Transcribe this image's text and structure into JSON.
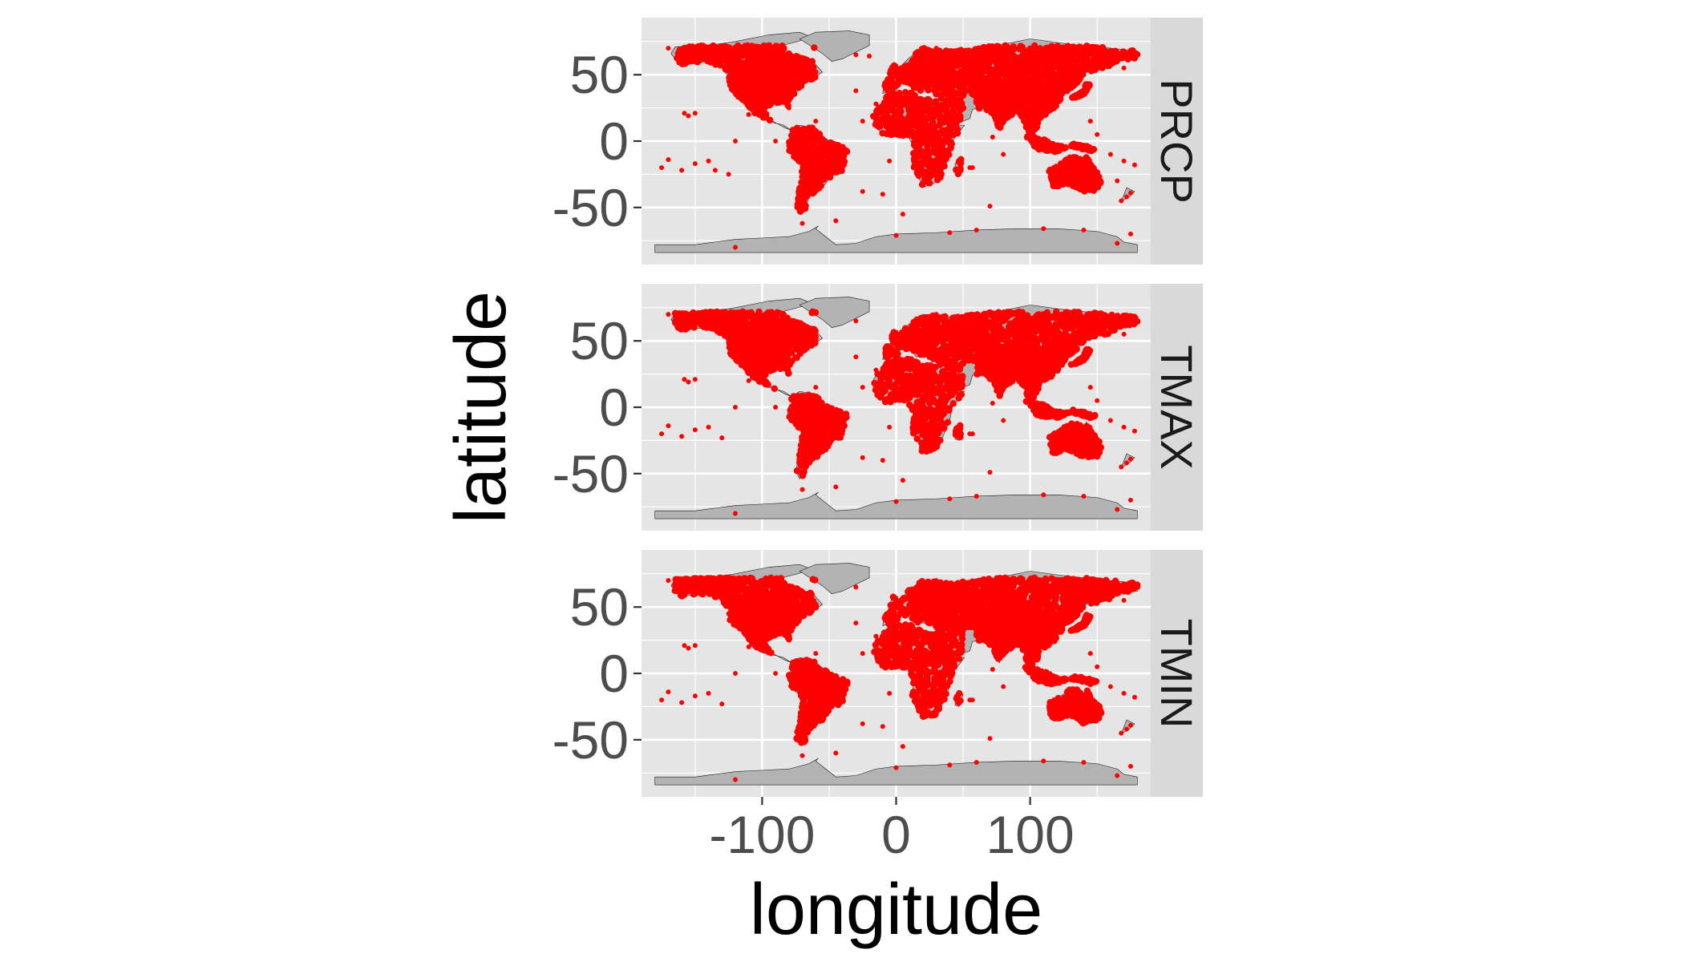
{
  "chart_data": {
    "type": "scatter",
    "xlabel": "longitude",
    "ylabel": "latitude",
    "xlim": [
      -190,
      190
    ],
    "ylim": [
      -93,
      93
    ],
    "xticks": [
      -100,
      0,
      100
    ],
    "xtick_labels": [
      "-100",
      "0",
      "100"
    ],
    "yticks": [
      -50,
      0,
      50
    ],
    "ytick_labels": [
      "-50",
      "0",
      "50"
    ],
    "grid": true,
    "panels": [
      {
        "label": "PRCP",
        "points": [
          [
            -170,
            70
          ],
          [
            -160,
            66
          ],
          [
            -150,
            62
          ],
          [
            -150,
            21
          ],
          [
            -158,
            21
          ],
          [
            -155,
            19
          ],
          [
            -170,
            -14
          ],
          [
            -175,
            -20
          ],
          [
            -160,
            -22
          ],
          [
            -150,
            -17
          ],
          [
            -140,
            -15
          ],
          [
            -135,
            -22
          ],
          [
            -125,
            -25
          ],
          [
            -120,
            0
          ],
          [
            -120,
            -80
          ],
          [
            -70,
            -62
          ],
          [
            -45,
            -60
          ],
          [
            0,
            -71
          ],
          [
            40,
            -69
          ],
          [
            60,
            -67
          ],
          [
            110,
            -66
          ],
          [
            140,
            -67
          ],
          [
            165,
            -77
          ],
          [
            175,
            -70
          ],
          [
            -30,
            38
          ],
          [
            -25,
            15
          ],
          [
            -15,
            28
          ],
          [
            -25,
            -38
          ],
          [
            -10,
            -40
          ],
          [
            -5,
            -15
          ],
          [
            5,
            -55
          ],
          [
            55,
            -20
          ],
          [
            57,
            -20
          ],
          [
            70,
            -49
          ],
          [
            80,
            -10
          ],
          [
            72,
            3
          ],
          [
            160,
            -10
          ],
          [
            170,
            -15
          ],
          [
            178,
            -18
          ],
          [
            172,
            -42
          ],
          [
            175,
            -39
          ],
          [
            168,
            -45
          ],
          [
            150,
            5
          ],
          [
            145,
            15
          ],
          [
            165,
            -30
          ],
          [
            -80,
            25
          ],
          [
            -90,
            0
          ],
          [
            -110,
            20
          ],
          [
            -125,
            45
          ],
          [
            -85,
            35
          ],
          [
            -120,
            60
          ],
          [
            170,
            55
          ],
          [
            -60,
            15
          ],
          [
            -40,
            -20
          ],
          [
            -30,
            65
          ],
          [
            -20,
            64
          ],
          [
            30,
            70
          ],
          [
            80,
            70
          ],
          [
            140,
            50
          ]
        ]
      },
      {
        "label": "TMAX",
        "points": [
          [
            -170,
            70
          ],
          [
            -160,
            66
          ],
          [
            -150,
            62
          ],
          [
            -150,
            21
          ],
          [
            -158,
            21
          ],
          [
            -155,
            19
          ],
          [
            -170,
            -14
          ],
          [
            -175,
            -20
          ],
          [
            -160,
            -22
          ],
          [
            -150,
            -17
          ],
          [
            -140,
            -15
          ],
          [
            -130,
            -23
          ],
          [
            -120,
            0
          ],
          [
            -120,
            -80
          ],
          [
            -70,
            -62
          ],
          [
            -45,
            -60
          ],
          [
            0,
            -71
          ],
          [
            40,
            -69
          ],
          [
            60,
            -67
          ],
          [
            110,
            -66
          ],
          [
            140,
            -67
          ],
          [
            165,
            -77
          ],
          [
            175,
            -70
          ],
          [
            -30,
            38
          ],
          [
            -25,
            15
          ],
          [
            -15,
            28
          ],
          [
            -25,
            -38
          ],
          [
            -10,
            -40
          ],
          [
            -5,
            -15
          ],
          [
            5,
            -55
          ],
          [
            55,
            -20
          ],
          [
            57,
            -20
          ],
          [
            70,
            -49
          ],
          [
            80,
            -10
          ],
          [
            72,
            3
          ],
          [
            160,
            -10
          ],
          [
            170,
            -15
          ],
          [
            178,
            -18
          ],
          [
            172,
            -42
          ],
          [
            175,
            -39
          ],
          [
            168,
            -45
          ],
          [
            150,
            5
          ],
          [
            145,
            15
          ],
          [
            -80,
            25
          ],
          [
            -90,
            0
          ],
          [
            -110,
            20
          ],
          [
            -125,
            45
          ],
          [
            -85,
            35
          ],
          [
            -120,
            60
          ],
          [
            170,
            55
          ],
          [
            -60,
            15
          ],
          [
            -40,
            -20
          ],
          [
            -30,
            65
          ],
          [
            30,
            70
          ],
          [
            80,
            70
          ],
          [
            140,
            50
          ]
        ]
      },
      {
        "label": "TMIN",
        "points": [
          [
            -170,
            70
          ],
          [
            -160,
            66
          ],
          [
            -150,
            62
          ],
          [
            -150,
            21
          ],
          [
            -158,
            21
          ],
          [
            -155,
            19
          ],
          [
            -170,
            -14
          ],
          [
            -175,
            -20
          ],
          [
            -160,
            -22
          ],
          [
            -150,
            -17
          ],
          [
            -140,
            -15
          ],
          [
            -130,
            -23
          ],
          [
            -120,
            0
          ],
          [
            -120,
            -80
          ],
          [
            -70,
            -62
          ],
          [
            -45,
            -60
          ],
          [
            0,
            -71
          ],
          [
            40,
            -69
          ],
          [
            60,
            -67
          ],
          [
            110,
            -66
          ],
          [
            140,
            -67
          ],
          [
            165,
            -77
          ],
          [
            175,
            -70
          ],
          [
            -30,
            38
          ],
          [
            -25,
            15
          ],
          [
            -15,
            28
          ],
          [
            -25,
            -38
          ],
          [
            -10,
            -40
          ],
          [
            -5,
            -15
          ],
          [
            5,
            -55
          ],
          [
            55,
            -20
          ],
          [
            57,
            -20
          ],
          [
            70,
            -49
          ],
          [
            80,
            -10
          ],
          [
            72,
            3
          ],
          [
            160,
            -10
          ],
          [
            170,
            -15
          ],
          [
            178,
            -18
          ],
          [
            172,
            -42
          ],
          [
            175,
            -39
          ],
          [
            168,
            -45
          ],
          [
            150,
            5
          ],
          [
            145,
            15
          ],
          [
            -80,
            25
          ],
          [
            -90,
            0
          ],
          [
            -110,
            20
          ],
          [
            -125,
            45
          ],
          [
            -85,
            35
          ],
          [
            -120,
            60
          ],
          [
            170,
            55
          ],
          [
            -60,
            15
          ],
          [
            -40,
            -20
          ],
          [
            -30,
            65
          ],
          [
            30,
            70
          ],
          [
            80,
            70
          ],
          [
            140,
            50
          ]
        ]
      }
    ],
    "colors": {
      "points": "#ff0000",
      "land": "#b3b3b3",
      "coast": "#1a1a1a",
      "panel_bg": "#e5e5e5",
      "grid": "#ffffff",
      "strip_bg": "#d9d9d9",
      "tick_text": "#4d4d4d",
      "title_text": "#000000"
    }
  }
}
